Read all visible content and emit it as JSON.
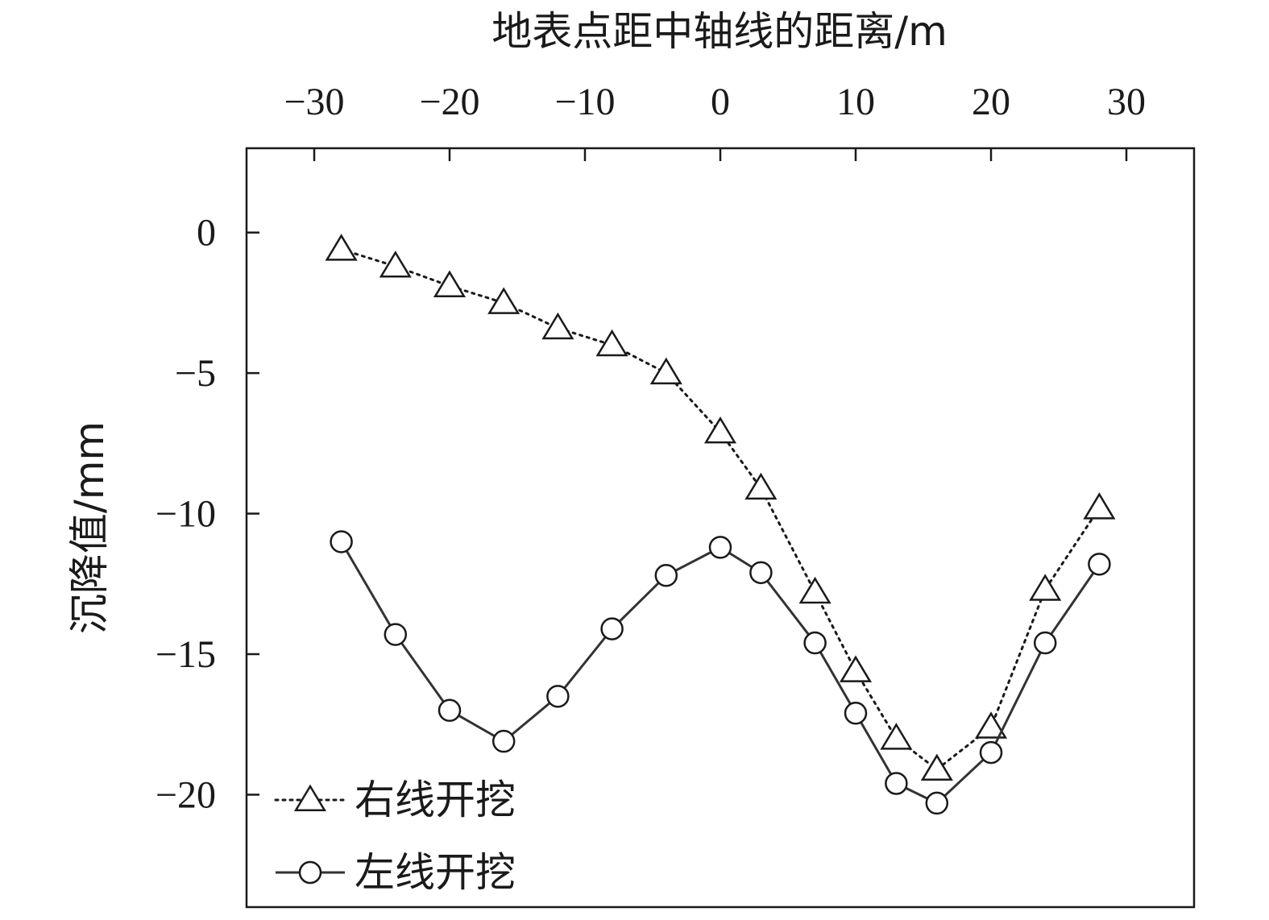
{
  "chart_data": {
    "type": "line",
    "xlabel": "地表点距中轴线的距离/m",
    "ylabel": "沉降值/mm",
    "x_axis_position": "top",
    "xlim": [
      -35,
      35
    ],
    "ylim": [
      -24,
      3
    ],
    "xticks": [
      "−30",
      "−20",
      "−10",
      "0",
      "10",
      "20",
      "30"
    ],
    "xtick_values": [
      -30,
      -20,
      -10,
      0,
      10,
      20,
      30
    ],
    "yticks": [
      "0",
      "−5",
      "−10",
      "−15",
      "−20"
    ],
    "ytick_values": [
      0,
      -5,
      -10,
      -15,
      -20
    ],
    "grid": false,
    "legend_position": "bottom-left",
    "series": [
      {
        "name": "右线开挖",
        "marker": "triangle",
        "line_style": "dotted",
        "color": "#1a1a1a",
        "x": [
          -28,
          -24,
          -20,
          -16,
          -12,
          -8,
          -4,
          0,
          3,
          7,
          10,
          13,
          16,
          20,
          24,
          28
        ],
        "y": [
          -0.6,
          -1.2,
          -1.9,
          -2.5,
          -3.4,
          -4.0,
          -5.0,
          -7.1,
          -9.1,
          -12.8,
          -15.6,
          -18.0,
          -19.1,
          -17.6,
          -12.7,
          -9.8
        ]
      },
      {
        "name": "左线开挖",
        "marker": "circle",
        "line_style": "solid",
        "color": "#333333",
        "x": [
          -28,
          -24,
          -20,
          -16,
          -12,
          -8,
          -4,
          0,
          3,
          7,
          10,
          13,
          16,
          20,
          24,
          28
        ],
        "y": [
          -11.0,
          -14.3,
          -17.0,
          -18.1,
          -16.5,
          -14.1,
          -12.2,
          -11.2,
          -12.1,
          -14.6,
          -17.1,
          -19.6,
          -20.3,
          -18.5,
          -14.6,
          -11.8
        ]
      }
    ]
  }
}
